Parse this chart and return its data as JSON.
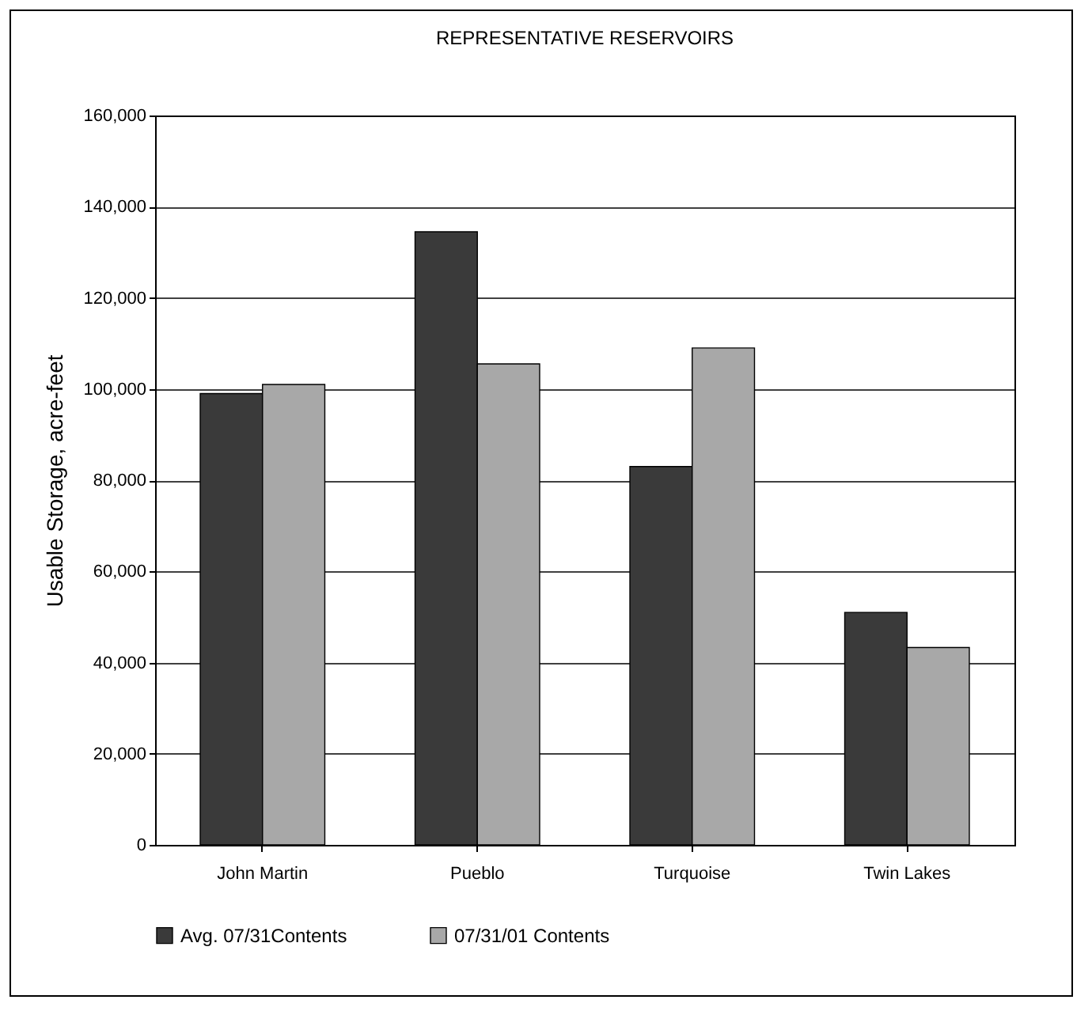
{
  "chart_data": {
    "type": "bar",
    "title": "REPRESENTATIVE RESERVOIRS",
    "ylabel": "Usable Storage, acre-feet",
    "categories": [
      "John Martin",
      "Pueblo",
      "Turquoise",
      "Twin Lakes"
    ],
    "series": [
      {
        "name": "Avg. 07/31Contents",
        "color": "#3a3a3a",
        "values": [
          99000,
          134500,
          83000,
          51000
        ]
      },
      {
        "name": "07/31/01 Contents",
        "color": "#a8a8a8",
        "values": [
          101000,
          105500,
          109000,
          43300
        ]
      }
    ],
    "ylim": [
      0,
      160000
    ],
    "yticks": [
      0,
      {
        "value": 20000,
        "label": "20,000"
      },
      {
        "value": 40000,
        "label": "40,000"
      },
      {
        "value": 60000,
        "label": "60,000"
      },
      {
        "value": 80000,
        "label": "80,000"
      },
      {
        "value": 100000,
        "label": "100,000"
      },
      {
        "value": 120000,
        "label": "120,000"
      },
      {
        "value": 140000,
        "label": "140,000"
      },
      {
        "value": 160000,
        "label": "160,000"
      }
    ],
    "grid": "y",
    "legend": "bottom"
  }
}
